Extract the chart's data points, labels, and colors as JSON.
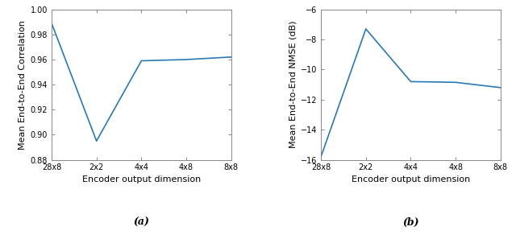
{
  "x_labels": [
    "28x8",
    "2x2",
    "4x4",
    "4x8",
    "8x8"
  ],
  "x_positions": [
    0,
    1,
    2,
    3,
    4
  ],
  "plot1": {
    "y_values": [
      0.989,
      0.895,
      0.959,
      0.96,
      0.962
    ],
    "ylabel": "Mean End-to-End Correlation",
    "ylim": [
      0.88,
      1.0
    ],
    "yticks": [
      0.88,
      0.9,
      0.92,
      0.94,
      0.96,
      0.98,
      1.0
    ],
    "xlabel": "Encoder output dimension",
    "label": "(a)"
  },
  "plot2": {
    "y_values": [
      -15.8,
      -7.3,
      -10.8,
      -10.85,
      -11.2
    ],
    "ylabel": "Mean End-to-End NMSE (dB)",
    "ylim": [
      -16,
      -6
    ],
    "yticks": [
      -16,
      -14,
      -12,
      -10,
      -8,
      -6
    ],
    "xlabel": "Encoder output dimension",
    "label": "(b)"
  },
  "line_color": "#2878b5",
  "line_width": 1.2,
  "axis_fontsize": 8,
  "tick_fontsize": 7,
  "label_fontsize": 9,
  "caption_fontsize": 9
}
